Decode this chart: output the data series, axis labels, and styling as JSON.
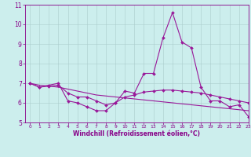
{
  "x": [
    0,
    1,
    2,
    3,
    4,
    5,
    6,
    7,
    8,
    9,
    10,
    11,
    12,
    13,
    14,
    15,
    16,
    17,
    18,
    19,
    20,
    21,
    22,
    23
  ],
  "line1": [
    7.0,
    6.8,
    6.9,
    7.0,
    6.1,
    6.0,
    5.8,
    5.6,
    5.6,
    6.0,
    6.6,
    6.5,
    7.5,
    7.5,
    9.3,
    10.6,
    9.1,
    8.8,
    6.8,
    6.1,
    6.1,
    5.8,
    5.9,
    5.3
  ],
  "line2": [
    7.0,
    6.8,
    6.85,
    6.9,
    6.5,
    6.3,
    6.3,
    6.1,
    5.9,
    6.0,
    6.3,
    6.4,
    6.55,
    6.6,
    6.65,
    6.65,
    6.6,
    6.55,
    6.5,
    6.4,
    6.3,
    6.2,
    6.1,
    6.0
  ],
  "line3": [
    7.0,
    6.9,
    6.85,
    6.8,
    6.7,
    6.6,
    6.5,
    6.4,
    6.35,
    6.3,
    6.25,
    6.2,
    6.15,
    6.1,
    6.05,
    6.0,
    5.95,
    5.9,
    5.85,
    5.8,
    5.75,
    5.7,
    5.65,
    5.6
  ],
  "line_color": "#991899",
  "bg_color": "#cceeed",
  "grid_color": "#aacccc",
  "axis_color": "#880088",
  "xlabel": "Windchill (Refroidissement éolien,°C)",
  "ylim": [
    5,
    11
  ],
  "xlim": [
    -0.5,
    23
  ],
  "yticks": [
    5,
    6,
    7,
    8,
    9,
    10,
    11
  ],
  "xticks": [
    0,
    1,
    2,
    3,
    4,
    5,
    6,
    7,
    8,
    9,
    10,
    11,
    12,
    13,
    14,
    15,
    16,
    17,
    18,
    19,
    20,
    21,
    22,
    23
  ],
  "marker_size": 2.0,
  "linewidth": 0.8,
  "xlabel_fontsize": 5.5,
  "xtick_fontsize": 4.3,
  "ytick_fontsize": 5.5
}
